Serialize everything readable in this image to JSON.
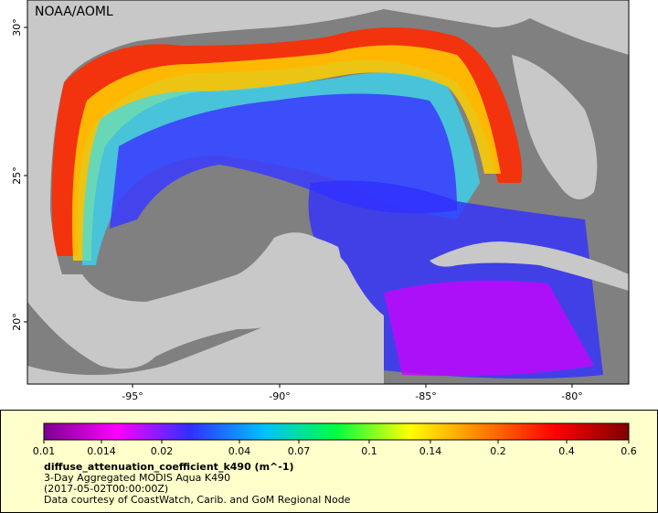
{
  "map": {
    "watermark": "NOAA/AOML",
    "lat_labels": [
      "30°",
      "25°",
      "20°"
    ],
    "lon_labels": [
      "-95°",
      "-90°",
      "-85°",
      "-80°"
    ]
  },
  "legend": {
    "scale": "log",
    "range": [
      0.01,
      0.6
    ],
    "ticks": [
      0.01,
      0.014,
      0.02,
      0.04,
      0.07,
      0.1,
      0.14,
      0.2,
      0.4,
      0.6
    ],
    "colors": [
      "#7a0090",
      "#ff00ff",
      "#3030ff",
      "#00c0ff",
      "#00ff40",
      "#ffff00",
      "#ff8000",
      "#ff0000",
      "#800000"
    ],
    "variable": "diffuse_attenuation_coefficient_k490 (m^-1)",
    "lines": [
      "3-Day Aggregated MODIS Aqua K490",
      "(2017-05-02T00:00:00Z)",
      "Data courtesy of CoastWatch, Carib. and GoM Regional Node"
    ]
  }
}
